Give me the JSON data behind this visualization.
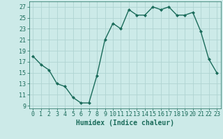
{
  "x": [
    0,
    1,
    2,
    3,
    4,
    5,
    6,
    7,
    8,
    9,
    10,
    11,
    12,
    13,
    14,
    15,
    16,
    17,
    18,
    19,
    20,
    21,
    22,
    23
  ],
  "y": [
    18,
    16.5,
    15.5,
    13,
    12.5,
    10.5,
    9.5,
    9.5,
    14.5,
    21,
    24,
    23,
    26.5,
    25.5,
    25.5,
    27,
    26.5,
    27,
    25.5,
    25.5,
    26,
    22.5,
    17.5,
    15
  ],
  "line_color": "#1a6b5a",
  "bg_color": "#cceae8",
  "grid_color": "#b0d4d2",
  "xlabel": "Humidex (Indice chaleur)",
  "yticks": [
    9,
    11,
    13,
    15,
    17,
    19,
    21,
    23,
    25,
    27
  ],
  "xtick_labels": [
    "0",
    "1",
    "2",
    "3",
    "4",
    "5",
    "6",
    "7",
    "8",
    "9",
    "10",
    "11",
    "12",
    "13",
    "14",
    "15",
    "16",
    "17",
    "18",
    "19",
    "20",
    "21",
    "22",
    "23"
  ],
  "xticks": [
    0,
    1,
    2,
    3,
    4,
    5,
    6,
    7,
    8,
    9,
    10,
    11,
    12,
    13,
    14,
    15,
    16,
    17,
    18,
    19,
    20,
    21,
    22,
    23
  ],
  "ylim": [
    8.5,
    28
  ],
  "xlim": [
    -0.5,
    23.5
  ],
  "xlabel_fontsize": 7,
  "tick_fontsize": 6,
  "marker_size": 2.5,
  "linewidth": 1.0
}
